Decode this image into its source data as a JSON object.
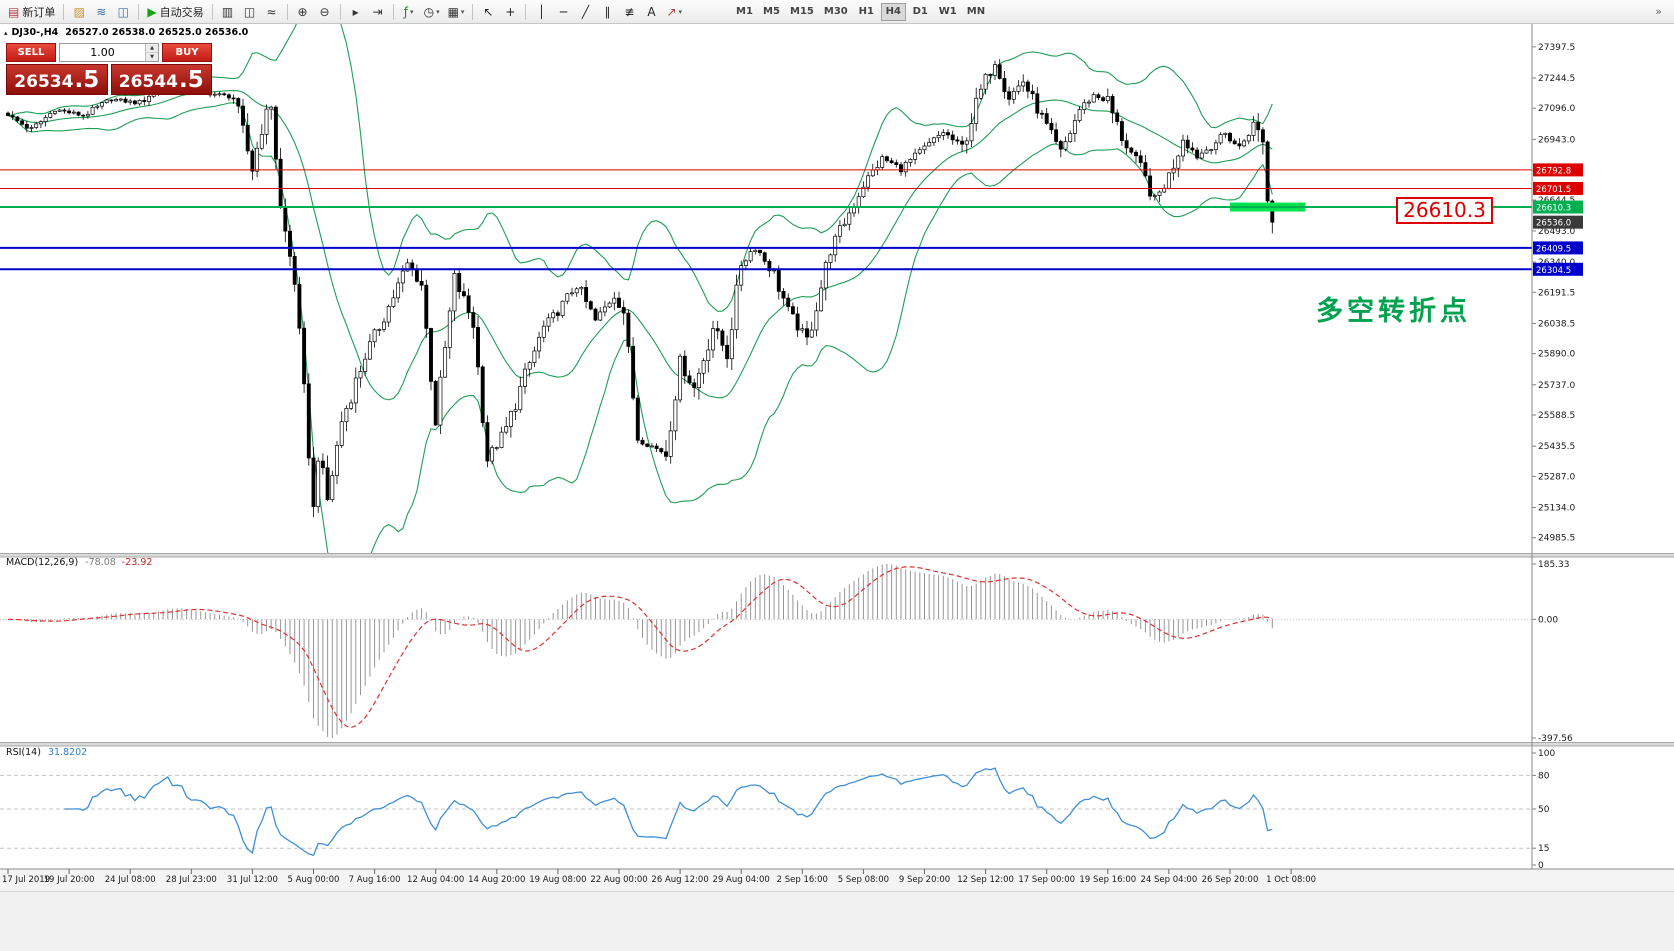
{
  "toolbar": {
    "groups": [
      [
        {
          "name": "new-order",
          "glyph": "▤",
          "color": "#b03a3a",
          "label": "新订单"
        }
      ],
      [
        {
          "name": "profiles",
          "glyph": "▨",
          "color": "#c89020"
        },
        {
          "name": "market-watch",
          "glyph": "≋",
          "color": "#3a6ea5"
        },
        {
          "name": "navigator",
          "glyph": "◫",
          "color": "#3a6ea5"
        }
      ],
      [
        {
          "name": "autotrading",
          "glyph": "▶",
          "color": "#17a017",
          "label": "自动交易"
        }
      ],
      [
        {
          "name": "bar-chart",
          "glyph": "▥",
          "color": "#333333"
        },
        {
          "name": "candlestick-chart",
          "glyph": "◫",
          "color": "#333333"
        },
        {
          "name": "line-chart",
          "glyph": "≈",
          "color": "#333333"
        }
      ],
      [
        {
          "name": "zoom-in",
          "glyph": "⊕",
          "color": "#333333"
        },
        {
          "name": "zoom-out",
          "glyph": "⊖",
          "color": "#333333"
        }
      ],
      [
        {
          "name": "auto-scroll",
          "glyph": "▸",
          "color": "#333333"
        },
        {
          "name": "chart-shift",
          "glyph": "⇥",
          "color": "#333333"
        }
      ],
      [
        {
          "name": "indicators",
          "glyph": "ƒ",
          "color": "#2a7d2a",
          "caret": true
        },
        {
          "name": "periods",
          "glyph": "◷",
          "color": "#333333",
          "caret": true
        },
        {
          "name": "templates",
          "glyph": "▦",
          "color": "#333333",
          "caret": true
        }
      ],
      [
        {
          "name": "cursor",
          "glyph": "↖",
          "color": "#222222"
        },
        {
          "name": "crosshair",
          "glyph": "+",
          "color": "#222222"
        }
      ],
      [
        {
          "name": "vertical-line",
          "glyph": "│",
          "color": "#222222"
        },
        {
          "name": "horizontal-line",
          "glyph": "─",
          "color": "#222222"
        },
        {
          "name": "trendline",
          "glyph": "╱",
          "color": "#222222"
        },
        {
          "name": "equidistant-channel",
          "glyph": "∥",
          "color": "#222222"
        },
        {
          "name": "fibonacci",
          "glyph": "≢",
          "color": "#222222"
        },
        {
          "name": "text",
          "glyph": "A",
          "color": "#222222"
        },
        {
          "name": "arrows",
          "glyph": "↗",
          "color": "#b03a3a",
          "caret": true
        }
      ]
    ],
    "timeframes": [
      "M1",
      "M5",
      "M15",
      "M30",
      "H1",
      "H4",
      "D1",
      "W1",
      "MN"
    ],
    "active_timeframe": "H4",
    "overflow_glyph": "»"
  },
  "symbol_line": {
    "collapse_glyph": "▴",
    "symbol": "DJ30-,H4",
    "ohlc": "26527.0 26538.0 26525.0 26536.0"
  },
  "trade_panel": {
    "sell_label": "SELL",
    "buy_label": "BUY",
    "volume": "1.00",
    "spin_up": "▲",
    "spin_down": "▼",
    "sell_price_int": "26534",
    "sell_price_frac": ".5",
    "buy_price_int": "26544",
    "buy_price_frac": ".5"
  },
  "price_callout": "26610.3",
  "annotation": "多空转折点",
  "macd": {
    "title": "MACD(12,26,9)",
    "value1": "-78.08",
    "value2": "-23.92",
    "axis": [
      "185.33",
      "0.00",
      "-397.56"
    ],
    "axis_values": [
      185.33,
      0,
      -397.56
    ]
  },
  "rsi": {
    "title": "RSI(14)",
    "value": "31.8202",
    "levels": [
      80,
      50,
      15
    ],
    "axis": [
      "100",
      "80",
      "50",
      "15",
      "0"
    ],
    "axis_values": [
      100,
      80,
      50,
      15,
      0
    ]
  },
  "colors": {
    "bull": "#ffffff",
    "bear": "#000000",
    "bands": "#1f9e55",
    "macd_hist": "#969696",
    "macd_signal": "#dd3333",
    "rsi": "#3f8fd8",
    "highlight": "#00e24e",
    "red_level": "#dd0000",
    "blue_level": "#0000cc",
    "green_level": "#00b050",
    "current_price_box": "#3a3a3a",
    "annotation": "#00a24e",
    "callout": "#dd0000"
  },
  "chart_data": {
    "type": "candlestick",
    "symbol": "DJ30-",
    "timeframe": "H4",
    "ohlc_current": {
      "open": 26527.0,
      "high": 26538.0,
      "low": 26525.0,
      "close": 26536.0
    },
    "bar_count": 270,
    "current_price": 26536.0,
    "current_price_label": "26536.0",
    "price_axis_ticks": [
      "27397.5",
      "27244.5",
      "27096.0",
      "26943.0",
      "26790.0",
      "26644.5",
      "26493.0",
      "26340.0",
      "26191.5",
      "26038.5",
      "25890.0",
      "25737.0",
      "25588.5",
      "25435.5",
      "25287.0",
      "25134.0",
      "24985.5"
    ],
    "levels": [
      {
        "price": 26792.8,
        "label": "26792.8",
        "color": "#dd0000",
        "width": 1
      },
      {
        "price": 26701.5,
        "label": "26701.5",
        "color": "#dd0000",
        "width": 1
      },
      {
        "price": 26610.3,
        "label": "26610.3",
        "color": "#00b050",
        "width": 2
      },
      {
        "price": 26409.5,
        "label": "26409.5",
        "color": "#0000cc",
        "width": 2
      },
      {
        "price": 26304.5,
        "label": "26304.5",
        "color": "#0000cc",
        "width": 2
      }
    ],
    "highlight": {
      "price": 26610.3,
      "from_bar": 260,
      "to_bar": 276
    },
    "anchors": [
      [
        0,
        27060
      ],
      [
        5,
        26990
      ],
      [
        10,
        27090
      ],
      [
        16,
        27060
      ],
      [
        22,
        27140
      ],
      [
        28,
        27120
      ],
      [
        34,
        27240
      ],
      [
        40,
        27180
      ],
      [
        48,
        27150
      ],
      [
        52,
        26800
      ],
      [
        54,
        27000
      ],
      [
        56,
        27120
      ],
      [
        58,
        26600
      ],
      [
        61,
        26250
      ],
      [
        63,
        25700
      ],
      [
        65,
        25120
      ],
      [
        66,
        25400
      ],
      [
        68,
        25170
      ],
      [
        71,
        25560
      ],
      [
        76,
        25880
      ],
      [
        81,
        26120
      ],
      [
        85,
        26330
      ],
      [
        88,
        26230
      ],
      [
        91,
        25560
      ],
      [
        95,
        26260
      ],
      [
        99,
        26040
      ],
      [
        102,
        25370
      ],
      [
        106,
        25520
      ],
      [
        110,
        25780
      ],
      [
        114,
        26020
      ],
      [
        117,
        26100
      ],
      [
        121,
        26230
      ],
      [
        125,
        26050
      ],
      [
        129,
        26180
      ],
      [
        131,
        26100
      ],
      [
        134,
        25470
      ],
      [
        140,
        25400
      ],
      [
        143,
        25850
      ],
      [
        146,
        25720
      ],
      [
        150,
        26020
      ],
      [
        153,
        25890
      ],
      [
        156,
        26330
      ],
      [
        159,
        26420
      ],
      [
        163,
        26280
      ],
      [
        166,
        26100
      ],
      [
        170,
        25950
      ],
      [
        175,
        26400
      ],
      [
        182,
        26720
      ],
      [
        186,
        26850
      ],
      [
        190,
        26800
      ],
      [
        195,
        26900
      ],
      [
        199,
        26980
      ],
      [
        203,
        26900
      ],
      [
        207,
        27180
      ],
      [
        210,
        27340
      ],
      [
        213,
        27150
      ],
      [
        216,
        27230
      ],
      [
        220,
        27050
      ],
      [
        224,
        26870
      ],
      [
        228,
        27090
      ],
      [
        231,
        27160
      ],
      [
        234,
        27130
      ],
      [
        237,
        26950
      ],
      [
        241,
        26800
      ],
      [
        244,
        26640
      ],
      [
        247,
        26760
      ],
      [
        250,
        26950
      ],
      [
        253,
        26860
      ],
      [
        256,
        26910
      ],
      [
        259,
        26970
      ],
      [
        262,
        26900
      ],
      [
        264,
        26980
      ],
      [
        266,
        27050
      ],
      [
        267,
        26960
      ],
      [
        268,
        26640
      ],
      [
        269,
        26536
      ]
    ],
    "time_labels": [
      "17 Jul 2019",
      "19 Jul 20:00",
      "24 Jul 08:00",
      "28 Jul 23:00",
      "31 Jul 12:00",
      "5 Aug 00:00",
      "7 Aug 16:00",
      "12 Aug 04:00",
      "14 Aug 20:00",
      "19 Aug 08:00",
      "22 Aug 00:00",
      "26 Aug 12:00",
      "29 Aug 04:00",
      "2 Sep 16:00",
      "5 Sep 08:00",
      "9 Sep 20:00",
      "12 Sep 12:00",
      "17 Sep 00:00",
      "19 Sep 16:00",
      "24 Sep 04:00",
      "26 Sep 20:00",
      "1 Oct 08:00"
    ]
  }
}
